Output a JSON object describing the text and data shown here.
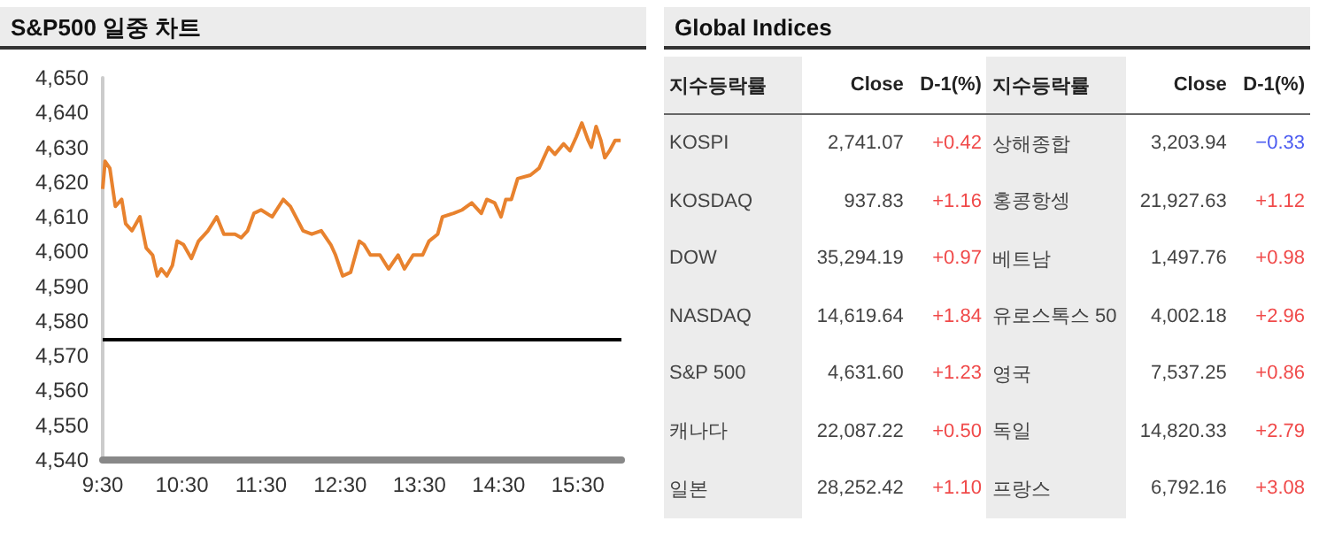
{
  "chart_data": [
    {
      "type": "line",
      "title": "S&P500 일중 차트",
      "color": "#e8822e",
      "xlim": [
        9.5,
        16.05
      ],
      "xticks": [
        {
          "value": 9.5,
          "label": "9:30"
        },
        {
          "value": 10.5,
          "label": "10:30"
        },
        {
          "value": 11.5,
          "label": "11:30"
        },
        {
          "value": 12.5,
          "label": "12:30"
        },
        {
          "value": 13.5,
          "label": "13:30"
        },
        {
          "value": 14.5,
          "label": "14:30"
        },
        {
          "value": 15.5,
          "label": "15:30"
        }
      ],
      "ylim": [
        4540,
        4650
      ],
      "yticks": [
        {
          "value": 4540,
          "label": "4,540"
        },
        {
          "value": 4550,
          "label": "4,550"
        },
        {
          "value": 4560,
          "label": "4,560"
        },
        {
          "value": 4570,
          "label": "4,570"
        },
        {
          "value": 4580,
          "label": "4,580"
        },
        {
          "value": 4590,
          "label": "4,590"
        },
        {
          "value": 4600,
          "label": "4,600"
        },
        {
          "value": 4610,
          "label": "4,610"
        },
        {
          "value": 4620,
          "label": "4,620"
        },
        {
          "value": 4630,
          "label": "4,630"
        },
        {
          "value": 4640,
          "label": "4,640"
        },
        {
          "value": 4650,
          "label": "4,650"
        }
      ],
      "grid": false,
      "marker": "none",
      "line_style": "solid",
      "x": [
        9.5,
        9.53,
        9.59,
        9.66,
        9.74,
        9.79,
        9.87,
        9.97,
        10.05,
        10.13,
        10.19,
        10.24,
        10.31,
        10.38,
        10.44,
        10.52,
        10.62,
        10.71,
        10.83,
        10.94,
        11.03,
        11.17,
        11.25,
        11.33,
        11.41,
        11.5,
        11.64,
        11.78,
        11.87,
        12.03,
        12.14,
        12.26,
        12.38,
        12.44,
        12.53,
        12.63,
        12.74,
        12.8,
        12.88,
        13.0,
        13.11,
        13.23,
        13.31,
        13.42,
        13.54,
        13.62,
        13.73,
        13.79,
        13.93,
        14.04,
        14.16,
        14.28,
        14.35,
        14.45,
        14.53,
        14.59,
        14.66,
        14.74,
        14.9,
        15.01,
        15.13,
        15.21,
        15.32,
        15.4,
        15.48,
        15.55,
        15.63,
        15.67,
        15.73,
        15.79,
        15.84,
        15.9,
        15.97,
        16.04
      ],
      "values": [
        4618,
        4626,
        4624,
        4613,
        4615,
        4608,
        4606,
        4610,
        4601,
        4599,
        4593,
        4595,
        4593,
        4596,
        4603,
        4602,
        4598,
        4603,
        4606,
        4610,
        4605,
        4605,
        4604,
        4606,
        4611,
        4612,
        4610,
        4615,
        4613,
        4606,
        4605,
        4606,
        4602,
        4599,
        4593,
        4594,
        4603,
        4602,
        4599,
        4599,
        4595,
        4599,
        4595,
        4599,
        4599,
        4603,
        4605,
        4610,
        4611,
        4612,
        4614,
        4611,
        4615,
        4614,
        4610,
        4615,
        4615,
        4621,
        4622,
        4624,
        4630,
        4628,
        4631,
        4629,
        4633,
        4637,
        4632,
        4630,
        4636,
        4632,
        4627,
        4629,
        4632,
        4632
      ],
      "ref_lines": [
        {
          "axis": "y",
          "value": 4575,
          "color": "#000000",
          "line_style": "solid"
        }
      ]
    },
    {
      "type": "other",
      "title": "Global Indices",
      "categories": [
        "지수등락률",
        "Close",
        "D-1(%)",
        "지수등락률",
        "Close",
        "D-1(%)"
      ],
      "cells": [
        [
          "KOSPI",
          "2,741.07",
          "+0.42",
          "상해종합",
          "3,203.94",
          "−0.33"
        ],
        [
          "KOSDAQ",
          "937.83",
          "+1.16",
          "홍콩항셍",
          "21,927.63",
          "+1.12"
        ],
        [
          "DOW",
          "35,294.19",
          "+0.97",
          "베트남",
          "1,497.76",
          "+0.98"
        ],
        [
          "NASDAQ",
          "14,619.64",
          "+1.84",
          "유로스톡스 50",
          "4,002.18",
          "+2.96"
        ],
        [
          "S&P 500",
          "4,631.60",
          "+1.23",
          "영국",
          "7,537.25",
          "+0.86"
        ],
        [
          "캐나다",
          "22,087.22",
          "+0.50",
          "독일",
          "14,820.33",
          "+2.79"
        ],
        [
          "일본",
          "28,252.42",
          "+1.10",
          "프랑스",
          "6,792.16",
          "+3.08"
        ]
      ],
      "colors": [
        [
          null,
          null,
          "#f04a4a",
          null,
          null,
          "#4a5af0"
        ],
        [
          null,
          null,
          "#f04a4a",
          null,
          null,
          "#f04a4a"
        ],
        [
          null,
          null,
          "#f04a4a",
          null,
          null,
          "#f04a4a"
        ],
        [
          null,
          null,
          "#f04a4a",
          null,
          null,
          "#f04a4a"
        ],
        [
          null,
          null,
          "#f04a4a",
          null,
          null,
          "#f04a4a"
        ],
        [
          null,
          null,
          "#f04a4a",
          null,
          null,
          "#f04a4a"
        ],
        [
          null,
          null,
          "#f04a4a",
          null,
          null,
          "#f04a4a"
        ]
      ]
    }
  ]
}
